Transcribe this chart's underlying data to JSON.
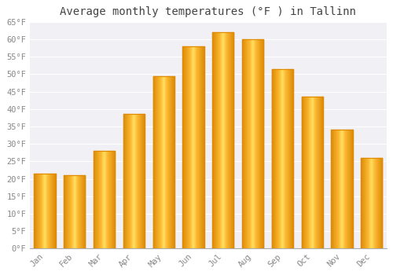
{
  "title": "Average monthly temperatures (°F ) in Tallinn",
  "months": [
    "Jan",
    "Feb",
    "Mar",
    "Apr",
    "May",
    "Jun",
    "Jul",
    "Aug",
    "Sep",
    "Oct",
    "Nov",
    "Dec"
  ],
  "values": [
    21.5,
    21.0,
    28.0,
    38.5,
    49.5,
    58.0,
    62.0,
    60.0,
    51.5,
    43.5,
    34.0,
    26.0
  ],
  "bar_color_main": "#FDB931",
  "bar_color_light": "#FFD966",
  "bar_color_edge": "#E8960A",
  "background_color": "#FFFFFF",
  "plot_bg_color": "#F0F0F5",
  "grid_color": "#FFFFFF",
  "text_color": "#888888",
  "title_color": "#444444",
  "ylim": [
    0,
    65
  ],
  "yticks": [
    0,
    5,
    10,
    15,
    20,
    25,
    30,
    35,
    40,
    45,
    50,
    55,
    60,
    65
  ],
  "title_fontsize": 10,
  "tick_fontsize": 7.5,
  "bar_width": 0.72
}
